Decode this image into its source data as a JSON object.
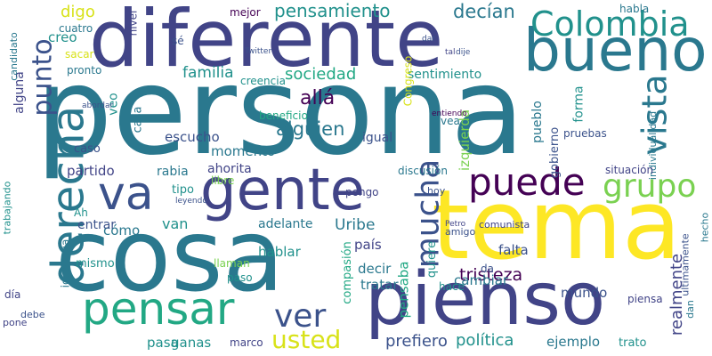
{
  "palette": {
    "purple": "#440154",
    "indigo": "#3b528b",
    "slate": "#414487",
    "teal": "#2a788e",
    "cyan": "#21918c",
    "green": "#22a884",
    "lime": "#7ad151",
    "yellow": "#d8e219",
    "gold": "#fde725"
  },
  "words": [
    "persona",
    "tema",
    "cosa",
    "diferente",
    "pienso",
    "gente",
    "bueno",
    "pensar",
    "derecha",
    "va",
    "puede",
    "Colombia",
    "mucha",
    "grupo",
    "vista",
    "punto",
    "usted",
    "ver",
    "decían",
    "pensamiento",
    "digo",
    "familia",
    "política",
    "prefiero",
    "ejemplo",
    "sociedad",
    "allá",
    "alguien",
    "realmente",
    "Uribe",
    "izquierda",
    "escucho",
    "partido",
    "tristeza",
    "creo",
    "momento",
    "pasa",
    "pensaba",
    "rabia",
    "ganas",
    "cambiar",
    "van",
    "mundo",
    "adelante",
    "pueblo",
    "falta",
    "hablar",
    "cómo",
    "individualidad",
    "forma",
    "igual",
    "sentimiento",
    "compasión",
    "decir",
    "situación",
    "tratar",
    "gobierno",
    "casa",
    "ahorita",
    "tipo",
    "alguna",
    "caso",
    "país",
    "entrar",
    "quiere",
    "trato",
    "Congreso",
    "veo",
    "mismo",
    "discusión",
    "mejor",
    "habla",
    "nivel",
    "cuatro",
    "sacar",
    "pronto",
    "candidato",
    "hace",
    "piensa",
    "beneficio",
    "pongo",
    "vea",
    "ideología",
    "paso",
    "día",
    "pruebas",
    "llaman",
    "libre",
    "Ah",
    "marco",
    "trabajando",
    "amigo",
    "hoy",
    "comunista",
    "entiendo",
    "debe",
    "dan",
    "hecho",
    "ultimamente",
    "creencia",
    "sé",
    "da",
    "pone",
    "dar",
    "Twitter",
    "abordar",
    "leyendo",
    "Petro",
    "dije",
    "tal"
  ]
}
